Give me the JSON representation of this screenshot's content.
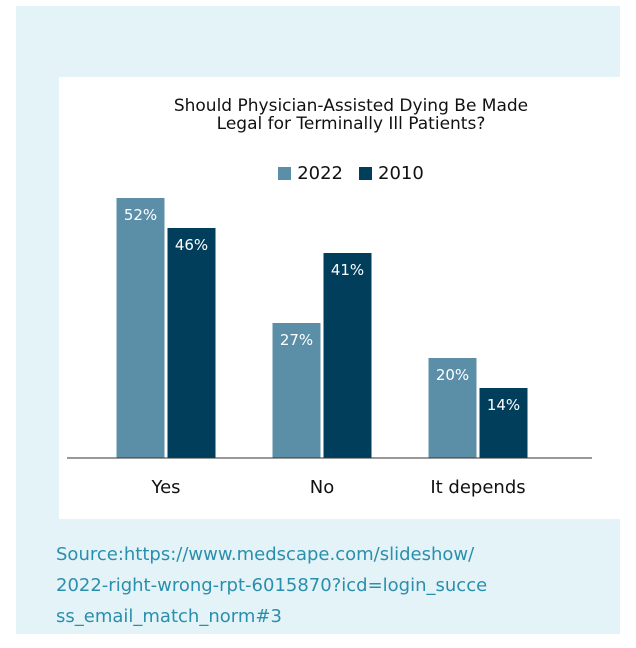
{
  "chart_data": {
    "type": "bar",
    "title_lines": [
      "Should Physician-Assisted Dying Be Made",
      "Legal for Terminally Ill Patients?"
    ],
    "categories": [
      "Yes",
      "No",
      "It depends"
    ],
    "series": [
      {
        "name": "2022",
        "color": "#5b8fa8",
        "values": [
          52,
          27,
          20
        ],
        "labels": [
          "52%",
          "27%",
          "20%"
        ]
      },
      {
        "name": "2010",
        "color": "#003e5c",
        "values": [
          46,
          41,
          14
        ],
        "labels": [
          "46%",
          "41%",
          "14%"
        ]
      }
    ],
    "ylim": [
      0,
      52
    ],
    "grid": false,
    "legend_position": "top-center"
  },
  "source": {
    "lines": [
      "Source:https://www.medscape.com/slideshow/",
      "2022-right-wrong-rpt-6015870?icd=login_succe",
      "ss_email_match_norm#3"
    ]
  }
}
